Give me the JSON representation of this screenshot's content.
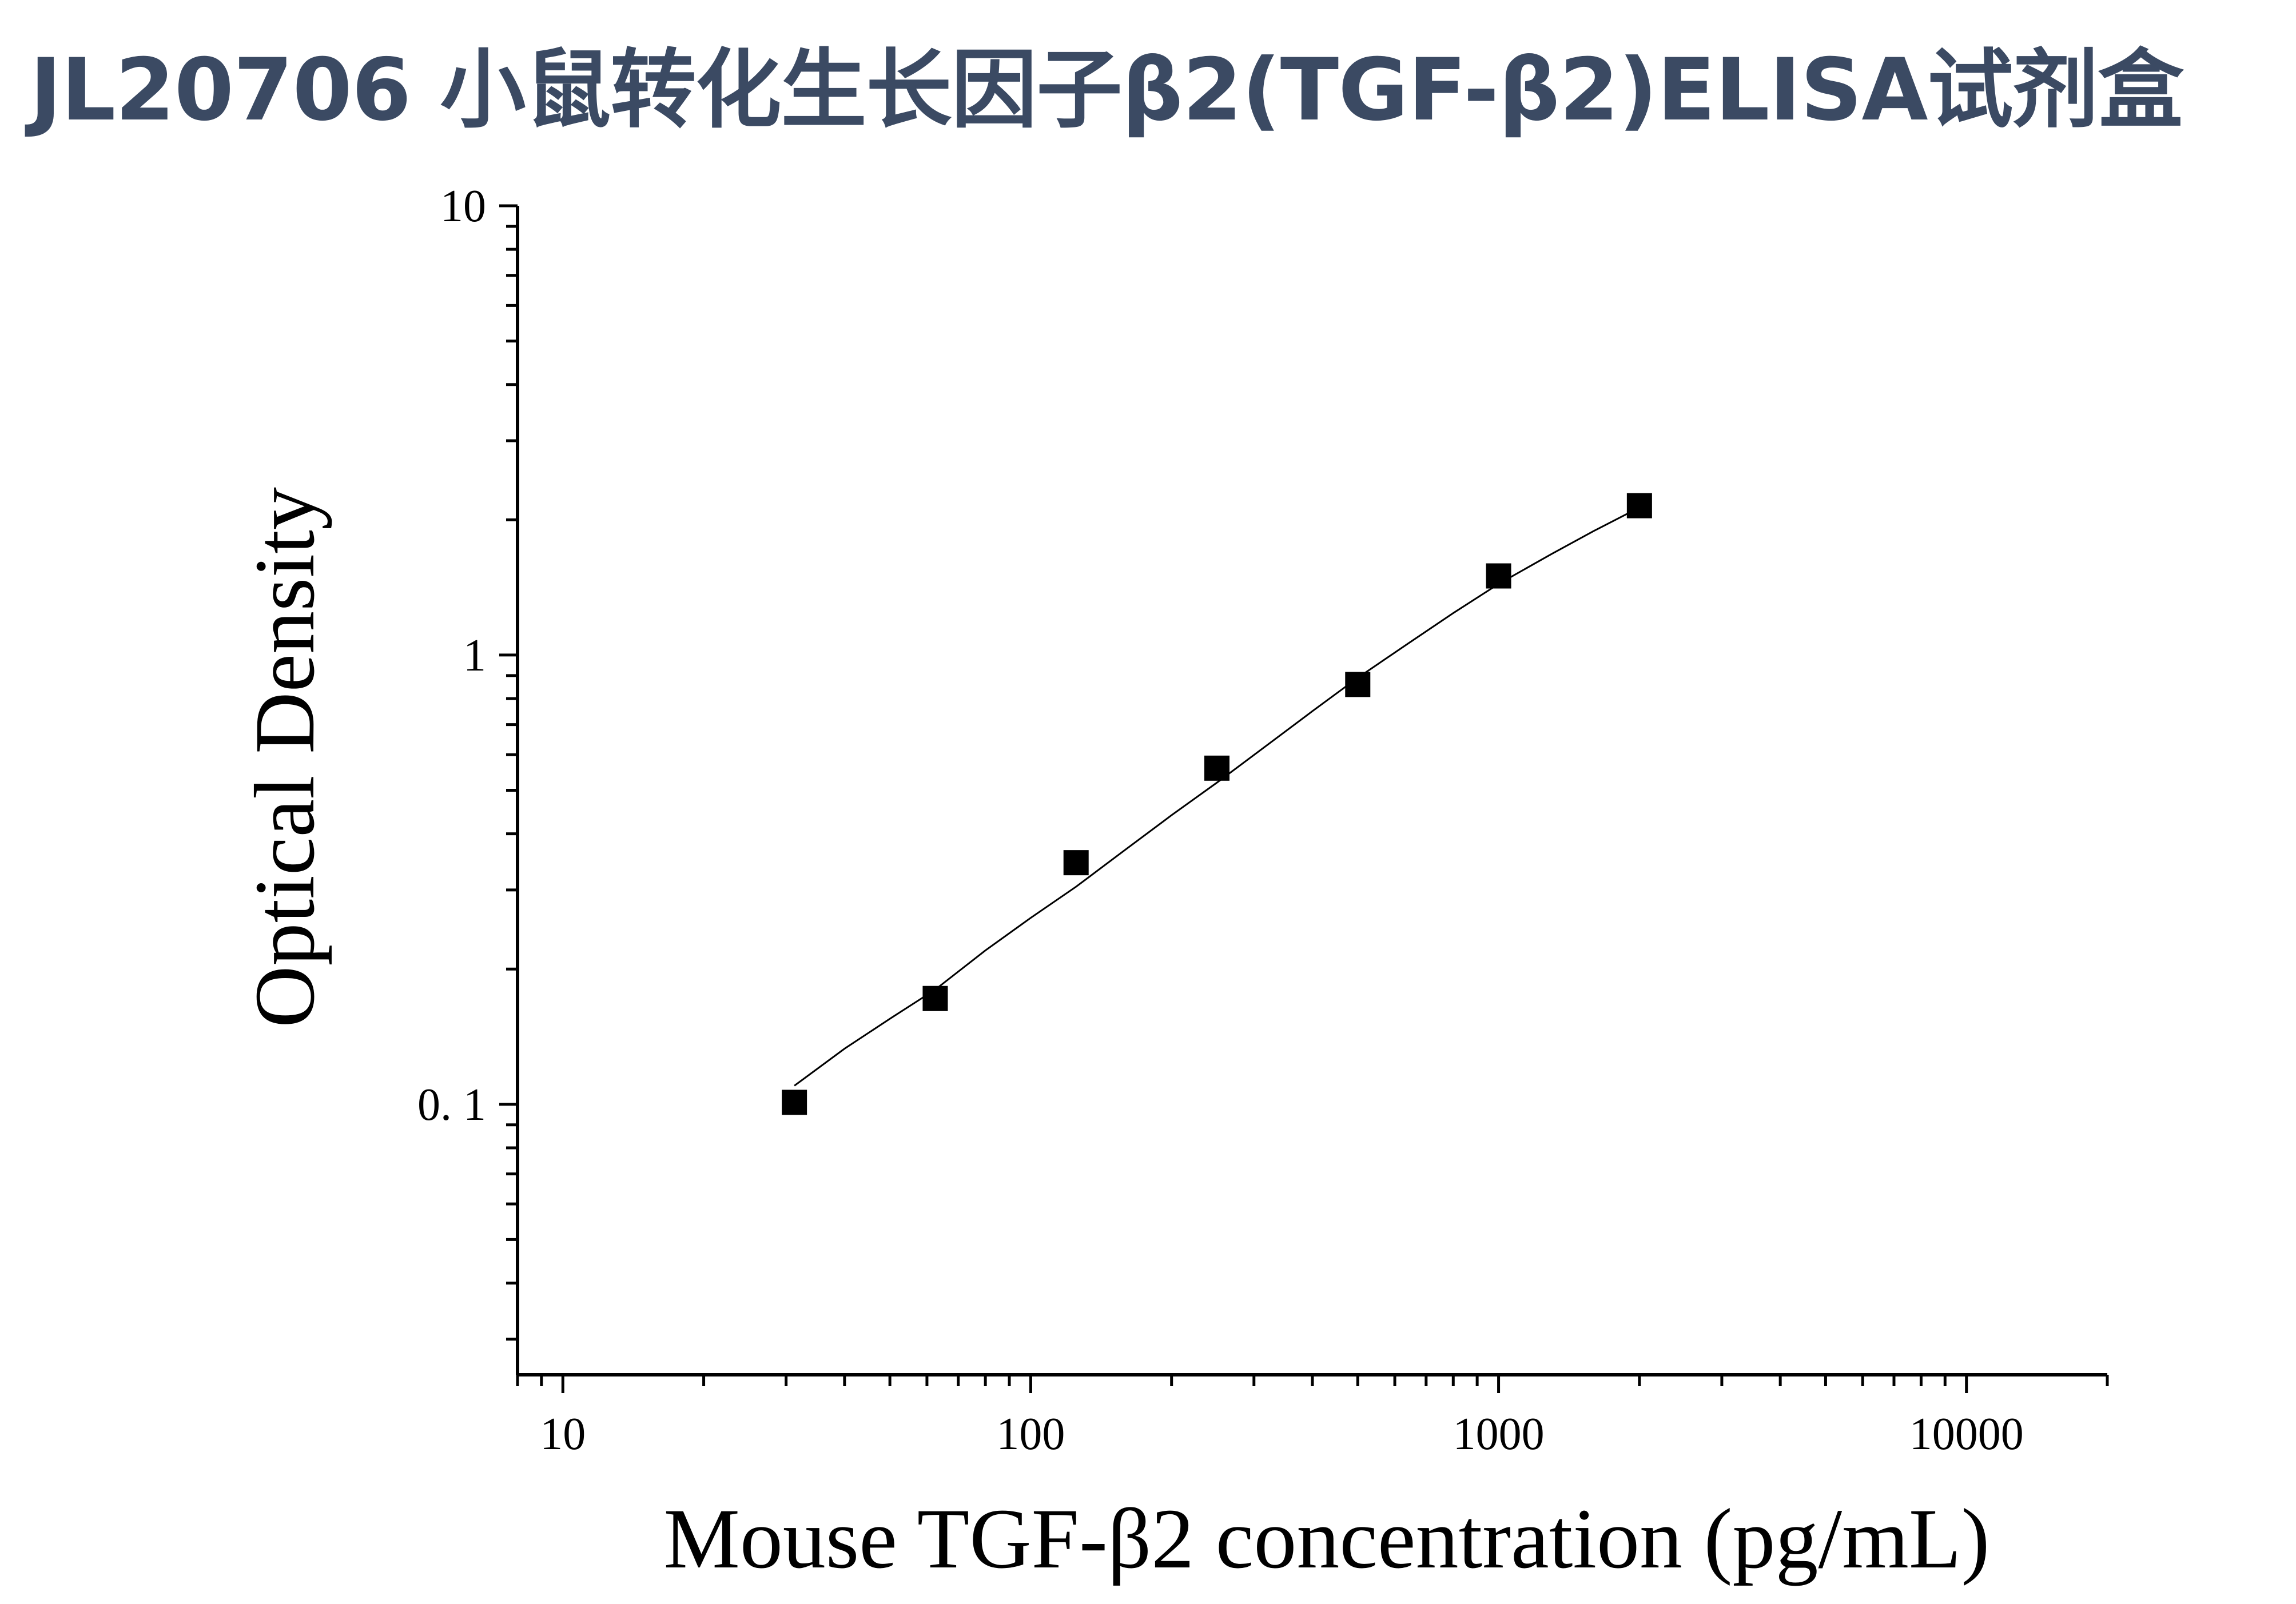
{
  "title": "JL20706 小鼠转化生长因子β2(TGF-β2)ELISA试剂盒",
  "colors": {
    "title": "#3b4a63",
    "ink": "#000000"
  },
  "chart_data": {
    "type": "scatter",
    "xlabel": "Mouse TGF-β2 concentration (pg/mL)",
    "ylabel": "Optical Density",
    "xscale": "log",
    "yscale": "log",
    "xlim": [
      8,
      20000
    ],
    "ylim": [
      0.025,
      10
    ],
    "x_ticks": [
      {
        "value": 10,
        "label": "10"
      },
      {
        "value": 100,
        "label": "100"
      },
      {
        "value": 1000,
        "label": "1000"
      },
      {
        "value": 10000,
        "label": "10000"
      }
    ],
    "y_ticks": [
      {
        "value": 0.1,
        "label": "0. 1"
      },
      {
        "value": 1,
        "label": "1"
      },
      {
        "value": 10,
        "label": "10"
      }
    ],
    "grid": false,
    "legend": "none",
    "series": [
      {
        "marker": "square",
        "x": [
          31.25,
          62.5,
          125,
          250,
          500,
          1000,
          2000
        ],
        "y": [
          0.101,
          0.172,
          0.345,
          0.56,
          0.86,
          1.5,
          2.15
        ]
      }
    ],
    "fit_curve": {
      "type": "line",
      "x": [
        31.25,
        40,
        50,
        62.5,
        80,
        100,
        125,
        160,
        200,
        250,
        320,
        400,
        500,
        640,
        800,
        1000,
        1300,
        1600,
        2000
      ],
      "y": [
        0.11,
        0.133,
        0.155,
        0.18,
        0.22,
        0.26,
        0.305,
        0.37,
        0.44,
        0.52,
        0.63,
        0.75,
        0.89,
        1.06,
        1.24,
        1.44,
        1.68,
        1.89,
        2.13
      ]
    }
  }
}
